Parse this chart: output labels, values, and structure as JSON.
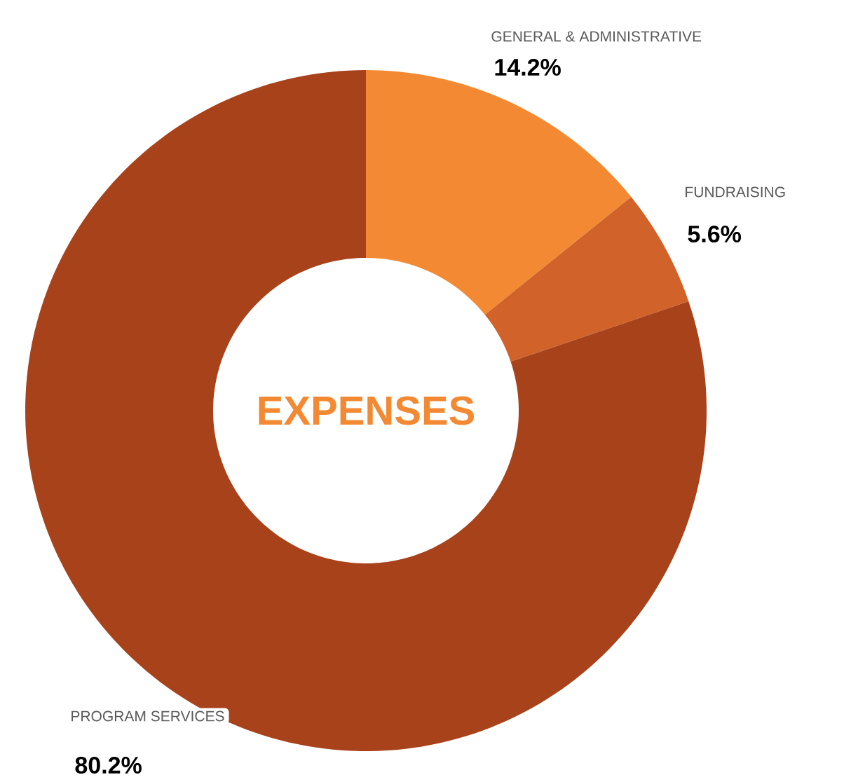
{
  "chart_data": {
    "type": "donut",
    "title": "EXPENSES",
    "categories": [
      "GENERAL & ADMINISTRATIVE",
      "FUNDRAISING",
      "PROGRAM SERVICES"
    ],
    "values": [
      14.2,
      5.6,
      80.2
    ],
    "value_labels": [
      "14.2%",
      "5.6%",
      "80.2%"
    ],
    "colors": [
      "#f38a33",
      "#d0622a",
      "#a8421b"
    ]
  }
}
